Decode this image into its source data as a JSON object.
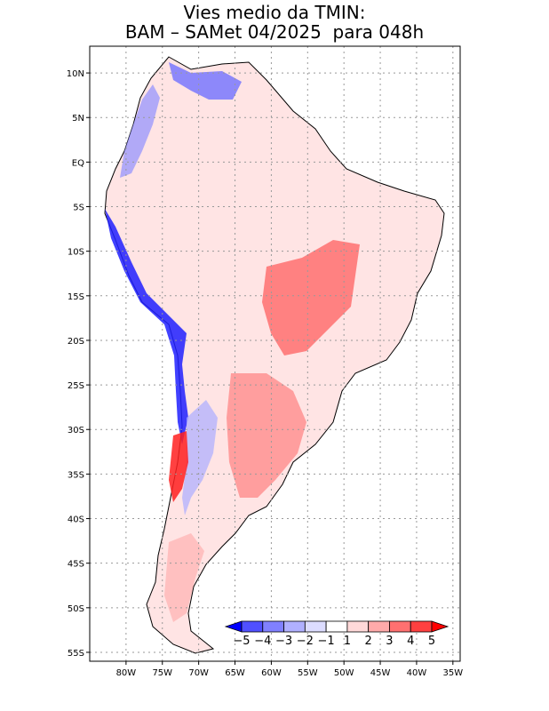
{
  "title": {
    "line1": "Vies medio da TMIN:",
    "line2": "BAM – SAMet 04/2025  para 048h"
  },
  "map": {
    "region": "South America",
    "lat_range": [
      -56,
      13
    ],
    "lon_range": [
      -85,
      -34
    ],
    "lat_ticks": [
      "10N",
      "5N",
      "EQ",
      "5S",
      "10S",
      "15S",
      "20S",
      "25S",
      "30S",
      "35S",
      "40S",
      "45S",
      "50S",
      "55S"
    ],
    "lat_values": [
      10,
      5,
      0,
      -5,
      -10,
      -15,
      -20,
      -25,
      -30,
      -35,
      -40,
      -45,
      -50,
      -55
    ],
    "lon_ticks": [
      "80W",
      "75W",
      "70W",
      "65W",
      "60W",
      "55W",
      "50W",
      "45W",
      "40W",
      "35W"
    ],
    "lon_values": [
      -80,
      -75,
      -70,
      -65,
      -60,
      -55,
      -50,
      -45,
      -40,
      -35
    ]
  },
  "colorbar": {
    "labels": [
      "−5",
      "−4",
      "−3",
      "−2",
      "−1",
      "1",
      "2",
      "3",
      "4",
      "5"
    ],
    "colors": [
      "#0000ff",
      "#5050ff",
      "#8080ff",
      "#b0b0ff",
      "#dcdcff",
      "#ffffff",
      "#ffd9d9",
      "#ffaaaa",
      "#ff7070",
      "#ff4040",
      "#ff0000"
    ]
  }
}
